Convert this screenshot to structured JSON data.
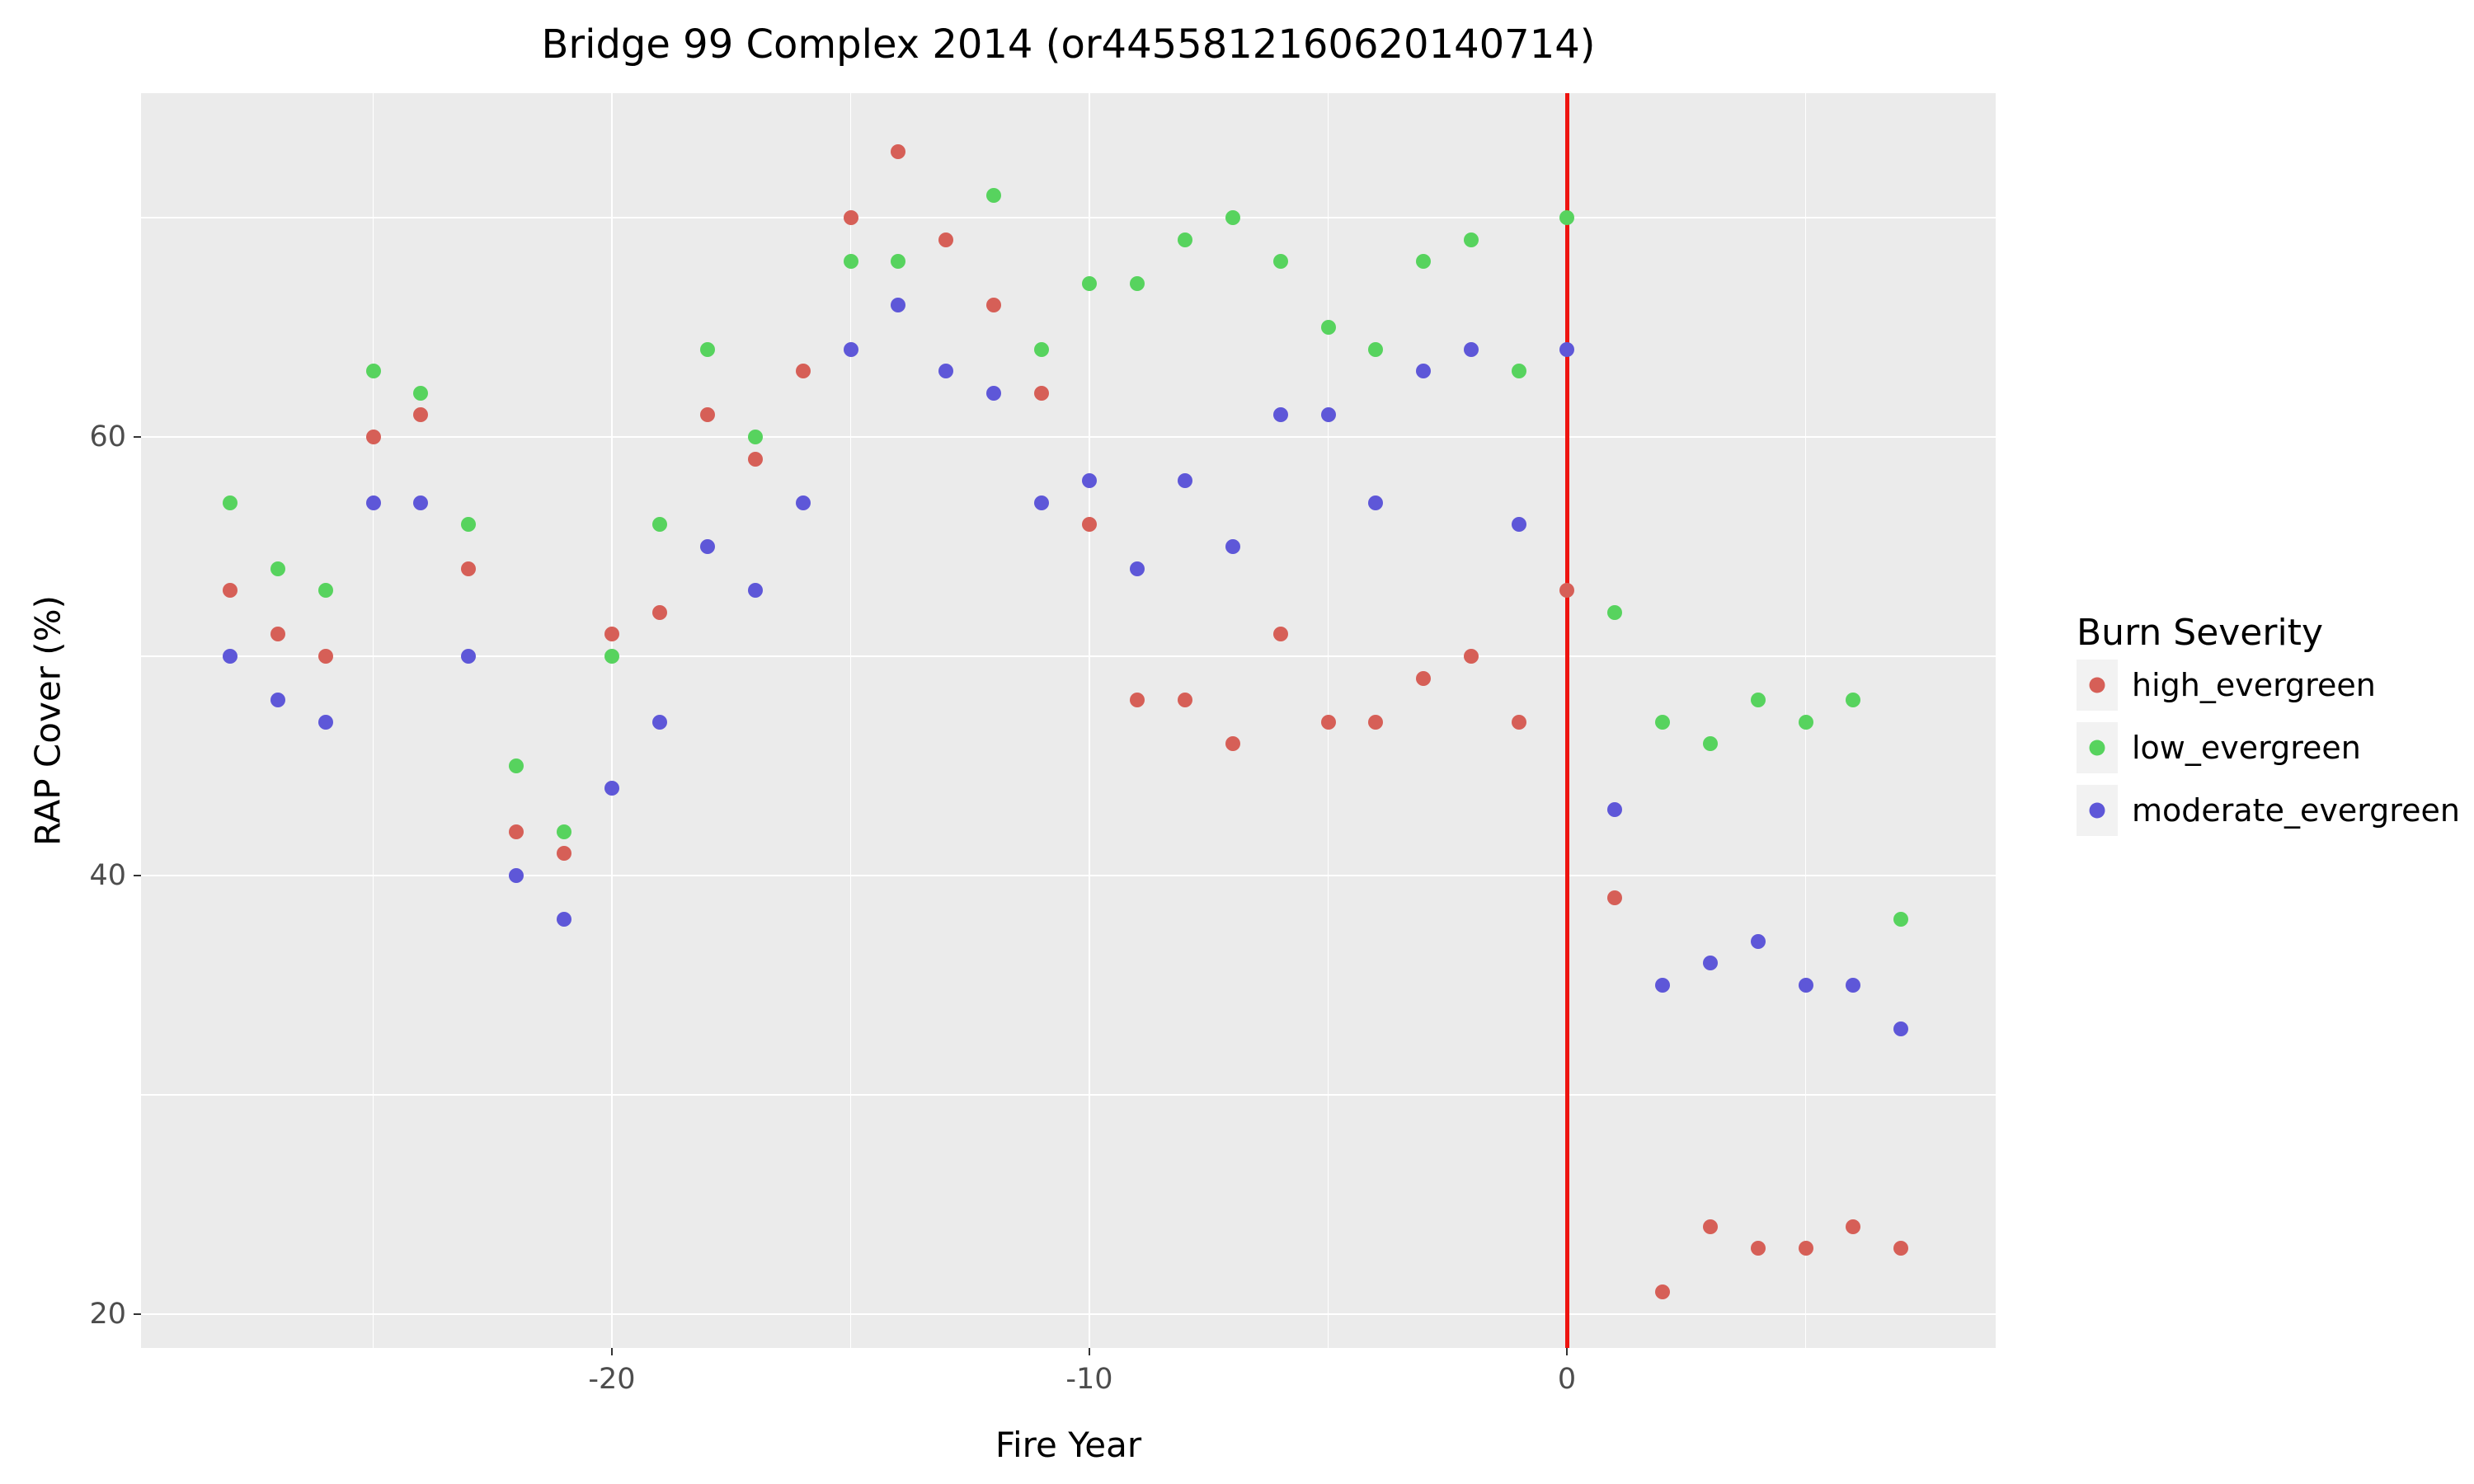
{
  "title": "Bridge 99 Complex 2014 (or4455812160620140714)",
  "axes": {
    "x_label": "Fire Year",
    "y_label": "RAP Cover (%)",
    "x_ticks": [
      -20,
      -10,
      0
    ],
    "y_ticks": [
      20,
      40,
      60
    ],
    "x_minor_gridlines": [
      -25,
      -15,
      -5,
      5
    ],
    "y_minor_gridlines": [
      30,
      50,
      70
    ],
    "x_range": [
      -29.8,
      9.0
    ],
    "y_range": [
      14.4,
      75.7
    ],
    "grid": "white major and minor gridlines on gray panel"
  },
  "legend": {
    "title": "Burn Severity",
    "items": [
      {
        "label": "high_evergreen",
        "color": "#d65f57"
      },
      {
        "label": "low_evergreen",
        "color": "#57d35e"
      },
      {
        "label": "moderate_evergreen",
        "color": "#5e57d8"
      }
    ]
  },
  "colors": {
    "panel_background": "#ebebeb",
    "gridline": "#ffffff",
    "fire_event_line": "#ee1410",
    "tick_label": "#4d4d4d",
    "high_evergreen": "#d65f57",
    "low_evergreen": "#57d35e",
    "moderate_evergreen": "#5e57d8"
  },
  "chart_data": {
    "type": "scatter",
    "title": "Bridge 99 Complex 2014 (or4455812160620140714)",
    "xlabel": "Fire Year",
    "ylabel": "RAP Cover (%)",
    "legend_position": "right",
    "vline_x": 0,
    "xlim": [
      -29.8,
      9.0
    ],
    "ylim": [
      14.4,
      75.7
    ],
    "x": [
      -28,
      -27,
      -26,
      -25,
      -24,
      -23,
      -22,
      -21,
      -20,
      -19,
      -18,
      -17,
      -16,
      -15,
      -14,
      -13,
      -12,
      -11,
      -10,
      -9,
      -8,
      -7,
      -6,
      -5,
      -4,
      -3,
      -2,
      -1,
      0,
      1,
      2,
      3,
      4,
      5,
      6,
      7
    ],
    "series": [
      {
        "name": "high_evergreen",
        "color": "#d65f57",
        "values": [
          53,
          51,
          50,
          60,
          61,
          54,
          42,
          41,
          51,
          52,
          61,
          59,
          63,
          70,
          73,
          69,
          66,
          62,
          56,
          48,
          48,
          46,
          51,
          47,
          47,
          49,
          50,
          47,
          53,
          39,
          21,
          24,
          23,
          23,
          24,
          23
        ]
      },
      {
        "name": "low_evergreen",
        "color": "#57d35e",
        "values": [
          57,
          54,
          53,
          63,
          62,
          56,
          45,
          42,
          50,
          56,
          64,
          60,
          null,
          68,
          68,
          null,
          71,
          64,
          67,
          67,
          69,
          70,
          68,
          65,
          64,
          68,
          69,
          63,
          70,
          52,
          47,
          46,
          48,
          47,
          48,
          38
        ]
      },
      {
        "name": "moderate_evergreen",
        "color": "#5e57d8",
        "values": [
          50,
          48,
          47,
          57,
          57,
          50,
          40,
          38,
          44,
          47,
          55,
          53,
          57,
          64,
          66,
          63,
          62,
          57,
          58,
          54,
          58,
          55,
          61,
          61,
          57,
          63,
          64,
          56,
          64,
          43,
          35,
          36,
          37,
          35,
          35,
          33
        ]
      }
    ]
  }
}
